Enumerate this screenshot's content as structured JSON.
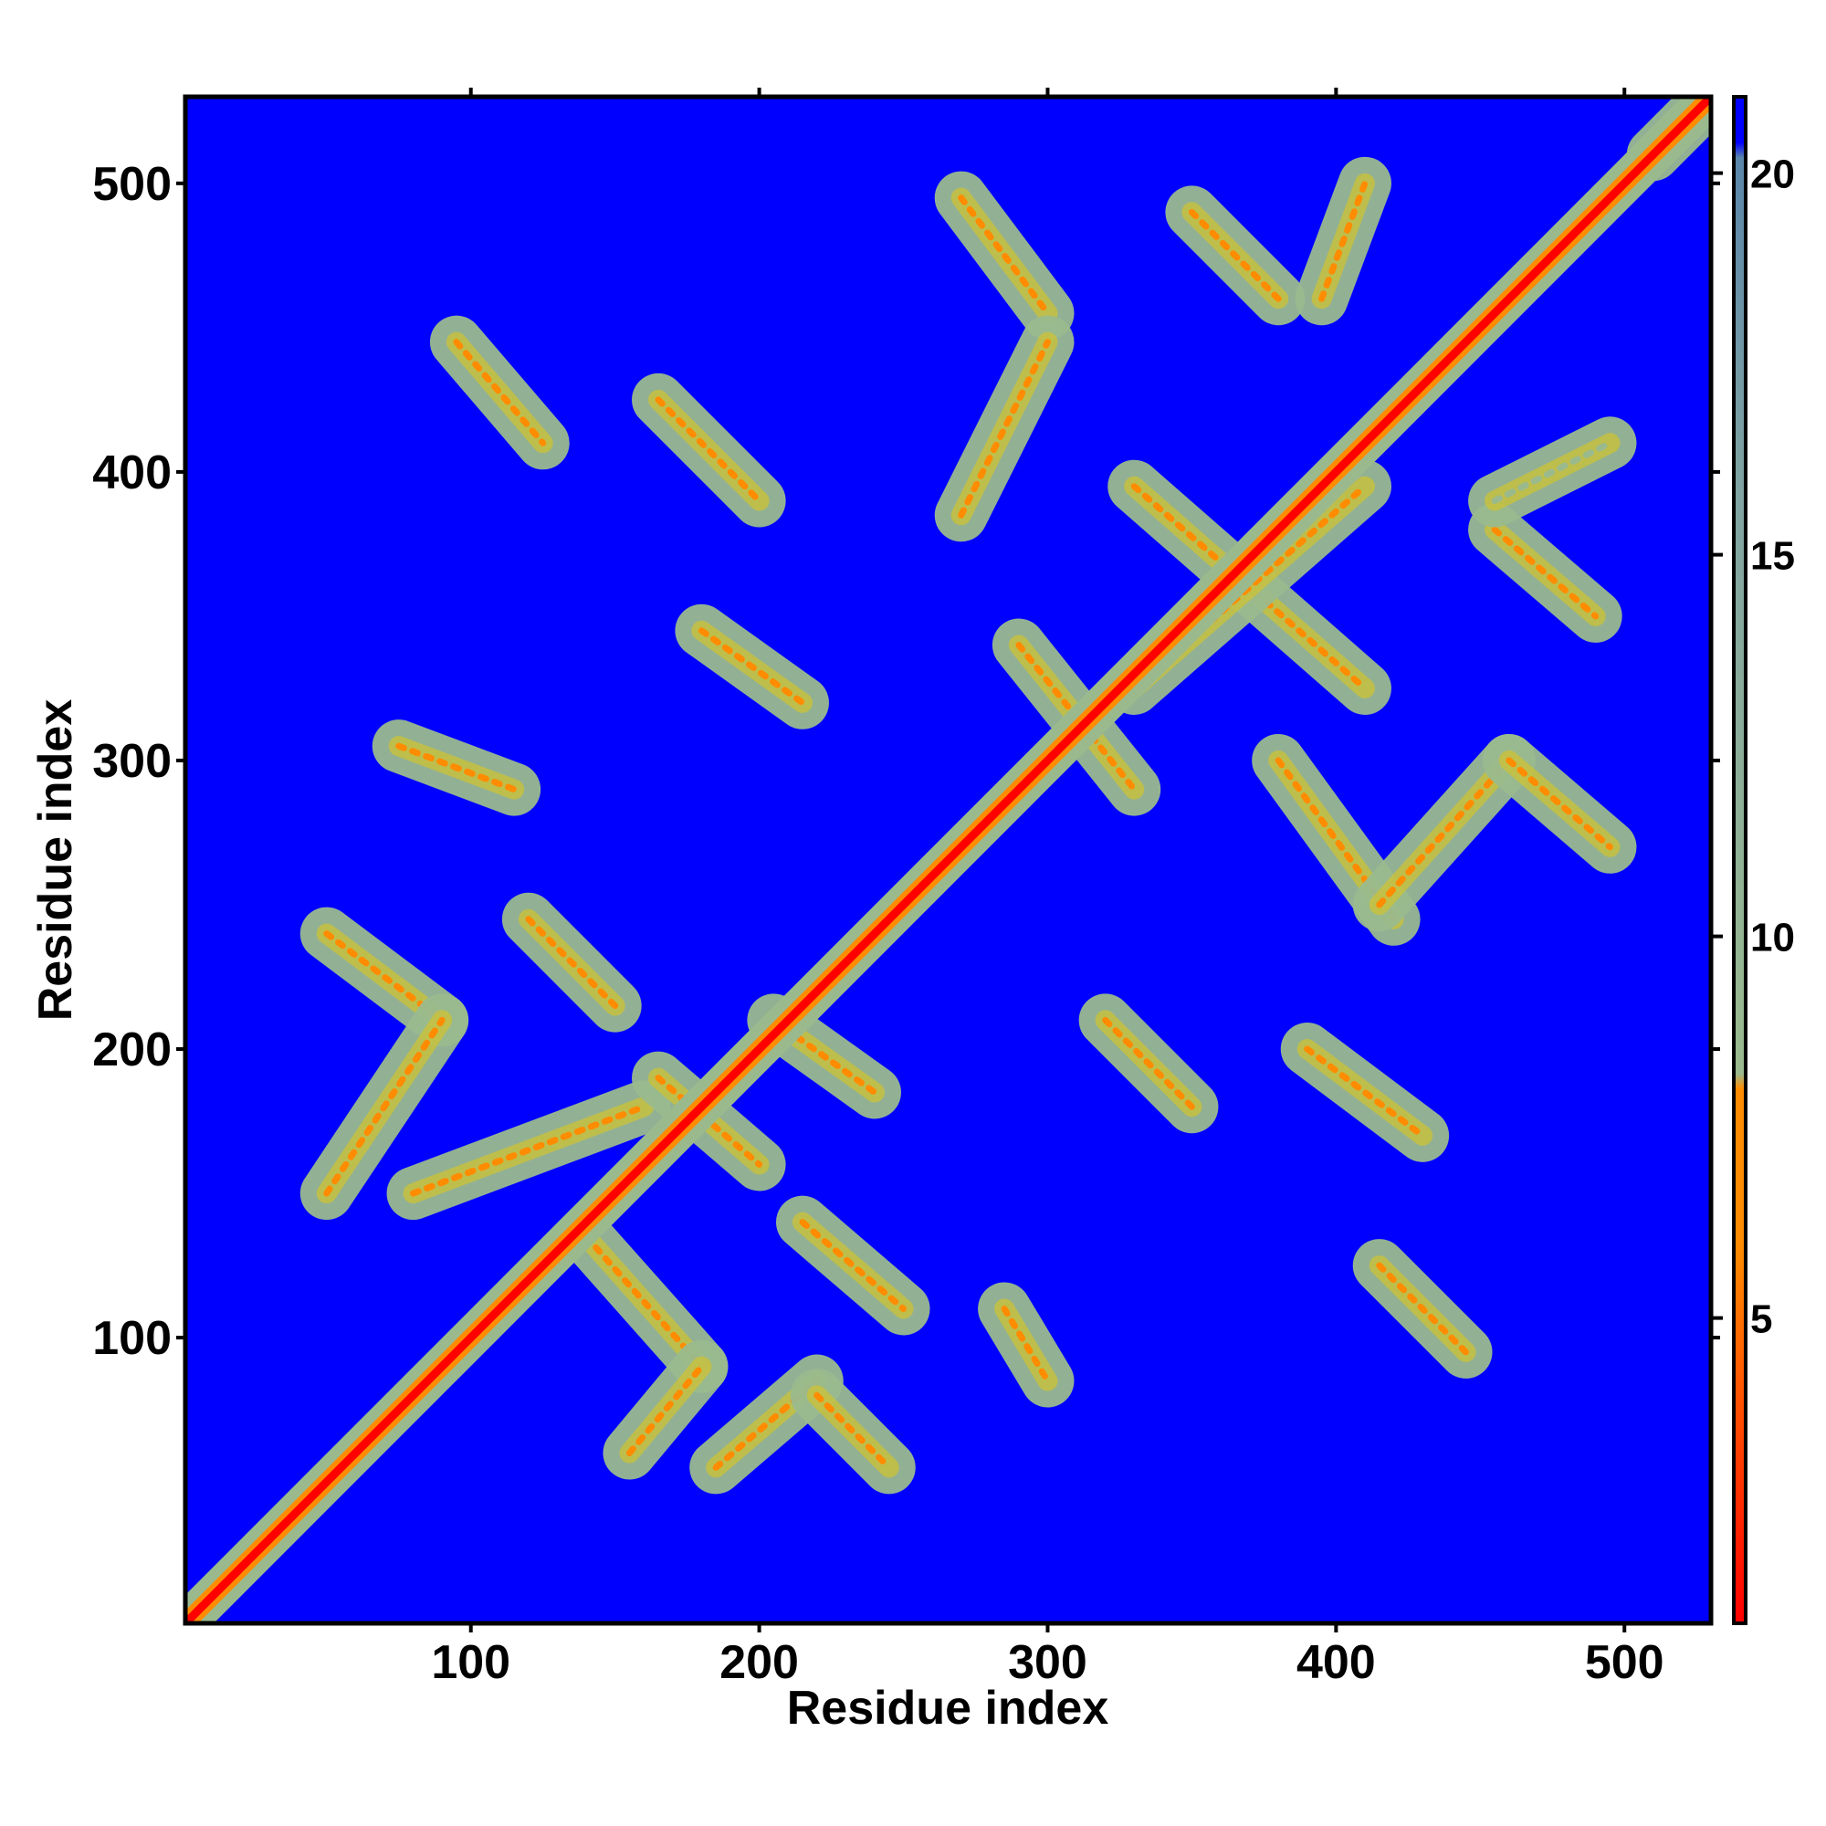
{
  "chart_data": {
    "type": "heatmap",
    "title": "",
    "xlabel": "Residue index",
    "ylabel": "Residue index",
    "xlim": [
      1,
      530
    ],
    "ylim": [
      1,
      530
    ],
    "x_ticks": [
      100,
      200,
      300,
      400,
      500
    ],
    "y_ticks": [
      100,
      200,
      300,
      400,
      500
    ],
    "colorbar": {
      "range": [
        1,
        21
      ],
      "ticks": [
        5,
        10,
        15,
        20
      ],
      "colors": [
        "#ff0000",
        "#ff8c00",
        "#9aba8e",
        "#5a86aa",
        "#0000ff"
      ]
    },
    "background_color": "#0000ff",
    "diagonal": {
      "from": 1,
      "to": 530,
      "value": 3
    },
    "features": [
      {
        "x": [
          95,
          125
        ],
        "y": [
          445,
          410
        ],
        "value": 6
      },
      {
        "x": [
          165,
          200
        ],
        "y": [
          425,
          390
        ],
        "value": 7
      },
      {
        "x": [
          270,
          300
        ],
        "y": [
          495,
          455
        ],
        "value": 6
      },
      {
        "x": [
          270,
          300
        ],
        "y": [
          385,
          445
        ],
        "value": 7
      },
      {
        "x": [
          350,
          380
        ],
        "y": [
          490,
          460
        ],
        "value": 6
      },
      {
        "x": [
          395,
          410
        ],
        "y": [
          460,
          500
        ],
        "value": 8
      },
      {
        "x": [
          330,
          410
        ],
        "y": [
          395,
          325
        ],
        "value": 6
      },
      {
        "x": [
          330,
          410
        ],
        "y": [
          325,
          395
        ],
        "value": 6
      },
      {
        "x": [
          455,
          490
        ],
        "y": [
          380,
          350
        ],
        "value": 7
      },
      {
        "x": [
          455,
          495
        ],
        "y": [
          390,
          410
        ],
        "value": 9
      },
      {
        "x": [
          180,
          215
        ],
        "y": [
          345,
          320
        ],
        "value": 7
      },
      {
        "x": [
          75,
          115
        ],
        "y": [
          305,
          290
        ],
        "value": 8
      },
      {
        "x": [
          380,
          420
        ],
        "y": [
          300,
          245
        ],
        "value": 7
      },
      {
        "x": [
          415,
          460
        ],
        "y": [
          250,
          300
        ],
        "value": 7
      },
      {
        "x": [
          460,
          495
        ],
        "y": [
          300,
          270
        ],
        "value": 6
      },
      {
        "x": [
          290,
          330
        ],
        "y": [
          340,
          290
        ],
        "value": 8
      },
      {
        "x": [
          320,
          350
        ],
        "y": [
          210,
          180
        ],
        "value": 7
      },
      {
        "x": [
          390,
          430
        ],
        "y": [
          200,
          170
        ],
        "value": 7
      },
      {
        "x": [
          415,
          445
        ],
        "y": [
          125,
          95
        ],
        "value": 6
      },
      {
        "x": [
          285,
          300
        ],
        "y": [
          110,
          85
        ],
        "value": 8
      },
      {
        "x": [
          50,
          90
        ],
        "y": [
          240,
          210
        ],
        "value": 7
      },
      {
        "x": [
          50,
          90
        ],
        "y": [
          150,
          210
        ],
        "value": 7
      },
      {
        "x": [
          120,
          150
        ],
        "y": [
          245,
          215
        ],
        "value": 7
      },
      {
        "x": [
          80,
          160
        ],
        "y": [
          150,
          180
        ],
        "value": 6
      },
      {
        "x": [
          140,
          180
        ],
        "y": [
          135,
          90
        ],
        "value": 7
      },
      {
        "x": [
          155,
          180
        ],
        "y": [
          60,
          90
        ],
        "value": 8
      },
      {
        "x": [
          185,
          220
        ],
        "y": [
          55,
          85
        ],
        "value": 6
      },
      {
        "x": [
          220,
          245
        ],
        "y": [
          80,
          55
        ],
        "value": 7
      },
      {
        "x": [
          215,
          250
        ],
        "y": [
          140,
          110
        ],
        "value": 6
      },
      {
        "x": [
          165,
          200
        ],
        "y": [
          190,
          160
        ],
        "value": 8
      },
      {
        "x": [
          205,
          240
        ],
        "y": [
          210,
          185
        ],
        "value": 8
      },
      {
        "x": [
          510,
          530
        ],
        "y": [
          510,
          530
        ],
        "value": 8
      }
    ]
  }
}
